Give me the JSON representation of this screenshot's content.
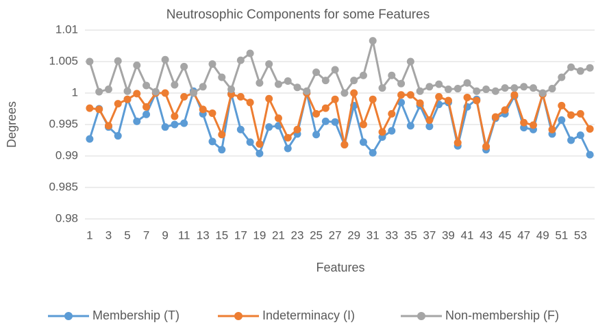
{
  "chart_data": {
    "type": "line",
    "title": "Neutrosophic Components for some Features",
    "x_label": "Features",
    "y_label": "Degrees",
    "categories": [
      "1",
      null,
      "3",
      null,
      "5",
      null,
      "7",
      null,
      "9",
      null,
      "11",
      null,
      "13",
      null,
      "15",
      null,
      "17",
      null,
      "19",
      null,
      "21",
      null,
      "23",
      null,
      "25",
      null,
      "27",
      null,
      "29",
      null,
      "31",
      null,
      "33",
      null,
      "35",
      null,
      "37",
      null,
      "39",
      null,
      "41",
      null,
      "43",
      null,
      "45",
      null,
      "47",
      null,
      "49",
      null,
      "51",
      null,
      "53",
      null
    ],
    "series": [
      {
        "name": "Membership (T)",
        "color": "#5b9bd5",
        "values": [
          0.9927,
          0.9975,
          0.9946,
          0.9932,
          0.999,
          0.9955,
          0.9966,
          1.0,
          0.9946,
          0.995,
          0.9952,
          1.0003,
          0.9967,
          0.9923,
          0.991,
          0.9999,
          0.9942,
          0.9922,
          0.9904,
          0.9946,
          0.9948,
          0.9912,
          0.9935,
          1.0,
          0.9934,
          0.9955,
          0.9954,
          0.9918,
          0.998,
          0.9922,
          0.9905,
          0.993,
          0.994,
          0.9985,
          0.9948,
          0.998,
          0.9947,
          0.9982,
          0.9985,
          0.9916,
          0.9978,
          0.999,
          0.991,
          0.996,
          0.9967,
          0.9995,
          0.9945,
          0.9942,
          0.9998,
          0.9935,
          0.9957,
          0.9925,
          0.9933,
          0.9902
        ]
      },
      {
        "name": "Indeterminacy (I)",
        "color": "#ed7d31",
        "values": [
          0.9976,
          0.9974,
          0.9948,
          0.9983,
          0.999,
          0.9999,
          0.9978,
          1.0,
          1.0,
          0.9963,
          0.9994,
          1.0,
          0.9974,
          0.9968,
          0.9934,
          0.9998,
          0.9994,
          0.9985,
          0.9919,
          0.9991,
          0.996,
          0.9929,
          0.9942,
          1.0,
          0.9967,
          0.9976,
          0.999,
          0.9918,
          1.0,
          0.995,
          0.999,
          0.9938,
          0.9967,
          0.9997,
          0.9997,
          0.9984,
          0.9957,
          0.9994,
          0.9988,
          0.9921,
          0.9993,
          0.9988,
          0.9915,
          0.9962,
          0.9973,
          0.9997,
          0.9953,
          0.9949,
          0.9998,
          0.9942,
          0.998,
          0.9965,
          0.9967,
          0.9943
        ]
      },
      {
        "name": "Non-membership (F)",
        "color": "#a5a5a5",
        "values": [
          1.005,
          1.0002,
          1.0006,
          1.0051,
          1.0003,
          1.0044,
          1.0012,
          1.0002,
          1.0053,
          1.0013,
          1.0042,
          1.0,
          1.001,
          1.0046,
          1.0025,
          1.0006,
          1.0052,
          1.0063,
          1.0016,
          1.0046,
          1.0014,
          1.0019,
          1.0009,
          1.0003,
          1.0033,
          1.002,
          1.0037,
          1.0,
          1.002,
          1.0028,
          1.0083,
          1.0008,
          1.0028,
          1.0015,
          1.005,
          1.0003,
          1.001,
          1.0014,
          1.0006,
          1.0007,
          1.0016,
          1.0003,
          1.0006,
          1.0003,
          1.0008,
          1.0008,
          1.001,
          1.0008,
          1.0,
          1.0007,
          1.0025,
          1.0041,
          1.0035,
          1.004
        ]
      }
    ],
    "ylim": [
      0.98,
      1.01
    ],
    "yticks": [
      0.98,
      0.985,
      0.99,
      0.995,
      1,
      1.005,
      1.01
    ],
    "grid": true,
    "legend": "bottom"
  }
}
